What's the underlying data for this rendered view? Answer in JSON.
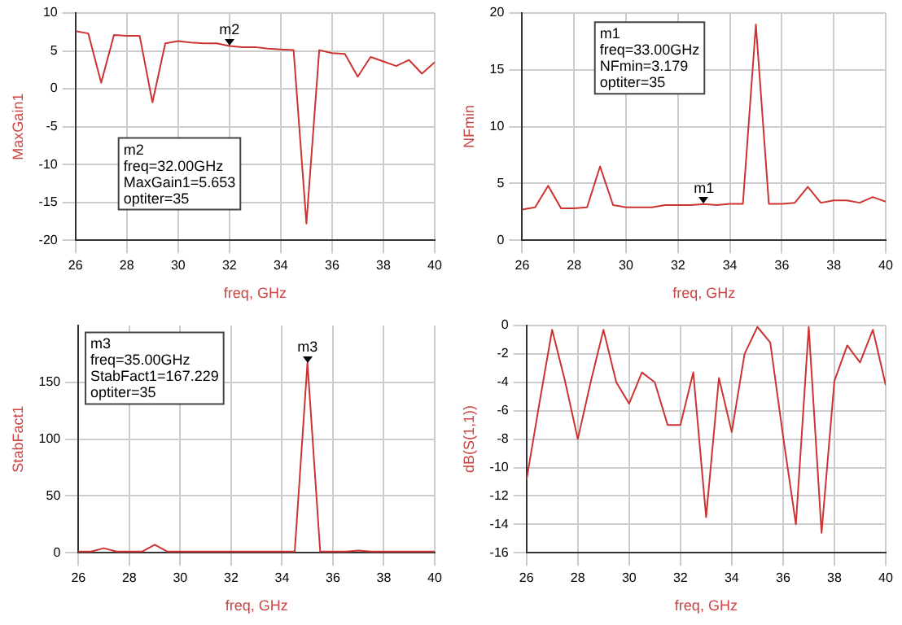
{
  "chart_data": [
    {
      "type": "line",
      "xlabel": "freq, GHz",
      "ylabel": "MaxGain1",
      "xlim": [
        26,
        40
      ],
      "xticks": [
        26,
        28,
        30,
        32,
        34,
        36,
        38,
        40
      ],
      "ylim": [
        -20,
        10
      ],
      "yticks": [
        -20,
        -15,
        -10,
        -5,
        0,
        5,
        10
      ],
      "grid": true,
      "legend": false,
      "series": [
        {
          "color": "#cc3333",
          "x": [
            26,
            26.5,
            27,
            27.5,
            28,
            28.5,
            29,
            29.5,
            30,
            30.5,
            31,
            31.5,
            32,
            32.5,
            33,
            33.5,
            34,
            34.5,
            35,
            35.5,
            36,
            36.5,
            37,
            37.5,
            38,
            38.5,
            39,
            39.5,
            40
          ],
          "values": [
            7.6,
            7.3,
            0.8,
            7.1,
            7,
            7,
            -1.8,
            6,
            6.3,
            6.1,
            6,
            6,
            5.653,
            5.5,
            5.5,
            5.3,
            5.2,
            5.1,
            -17.8,
            5.1,
            4.7,
            4.6,
            1.6,
            4.2,
            3.6,
            3,
            3.8,
            2,
            3.5
          ]
        }
      ],
      "annotations": [
        {
          "text": "m2",
          "x": 32,
          "y": 5.653
        },
        "m2\nfreq=32.00GHz\nMaxGain1=5.653\noptiter=35"
      ]
    },
    {
      "type": "line",
      "xlabel": "freq, GHz",
      "ylabel": "NFmin",
      "xlim": [
        26,
        40
      ],
      "xticks": [
        26,
        28,
        30,
        32,
        34,
        36,
        38,
        40
      ],
      "ylim": [
        0,
        20
      ],
      "yticks": [
        0,
        5,
        10,
        15,
        20
      ],
      "grid": true,
      "legend": false,
      "series": [
        {
          "color": "#cc3333",
          "x": [
            26,
            26.5,
            27,
            27.5,
            28,
            28.5,
            29,
            29.5,
            30,
            30.5,
            31,
            31.5,
            32,
            32.5,
            33,
            33.5,
            34,
            34.5,
            35,
            35.5,
            36,
            36.5,
            37,
            37.5,
            38,
            38.5,
            39,
            39.5,
            40
          ],
          "values": [
            2.7,
            2.9,
            4.8,
            2.8,
            2.8,
            2.9,
            6.5,
            3.1,
            2.9,
            2.9,
            2.9,
            3.1,
            3.1,
            3.1,
            3.179,
            3.1,
            3.2,
            3.2,
            19,
            3.2,
            3.2,
            3.3,
            4.7,
            3.3,
            3.5,
            3.5,
            3.3,
            3.8,
            3.4
          ]
        }
      ],
      "annotations": [
        {
          "text": "m1",
          "x": 33,
          "y": 3.179
        },
        "m1\nfreq=33.00GHz\nNFmin=3.179\noptiter=35"
      ]
    },
    {
      "type": "line",
      "xlabel": "freq, GHz",
      "ylabel": "StabFact1",
      "xlim": [
        26,
        40
      ],
      "xticks": [
        26,
        28,
        30,
        32,
        34,
        36,
        38,
        40
      ],
      "ylim": [
        0,
        200
      ],
      "yticks": [
        0,
        50,
        100,
        150
      ],
      "grid": true,
      "legend": false,
      "series": [
        {
          "color": "#cc3333",
          "x": [
            26,
            26.5,
            27,
            27.5,
            28,
            28.5,
            29,
            29.5,
            30,
            30.5,
            31,
            31.5,
            32,
            32.5,
            33,
            33.5,
            34,
            34.5,
            35,
            35.5,
            36,
            36.5,
            37,
            37.5,
            38,
            38.5,
            39,
            39.5,
            40
          ],
          "values": [
            1,
            1,
            4,
            1,
            1,
            1,
            7,
            1,
            1,
            1,
            1,
            1,
            1,
            1,
            1,
            1,
            1,
            1,
            167.229,
            1,
            1,
            1,
            2,
            1,
            1,
            1,
            1,
            1,
            1
          ]
        }
      ],
      "annotations": [
        {
          "text": "m3",
          "x": 35,
          "y": 167.229
        },
        "m3\nfreq=35.00GHz\nStabFact1=167.229\noptiter=35"
      ]
    },
    {
      "type": "line",
      "xlabel": "freq, GHz",
      "ylabel": "dB(S(1,1))",
      "xlim": [
        26,
        40
      ],
      "xticks": [
        26,
        28,
        30,
        32,
        34,
        36,
        38,
        40
      ],
      "ylim": [
        -16,
        0
      ],
      "yticks": [
        -16,
        -14,
        -12,
        -10,
        -8,
        -6,
        -4,
        -2,
        0
      ],
      "grid": true,
      "legend": false,
      "series": [
        {
          "color": "#cc3333",
          "x": [
            26,
            26.5,
            27,
            27.5,
            28,
            28.5,
            29,
            29.5,
            30,
            30.5,
            31,
            31.5,
            32,
            32.5,
            33,
            33.5,
            34,
            34.5,
            35,
            35.5,
            36,
            36.5,
            37,
            37.5,
            38,
            38.5,
            39,
            39.5,
            40
          ],
          "values": [
            -10.9,
            -5.5,
            -0.3,
            -3.9,
            -8,
            -4,
            -0.3,
            -4,
            -5.5,
            -3.3,
            -4,
            -7,
            -7,
            -3.3,
            -13.5,
            -3.7,
            -7.5,
            -2,
            -0.1,
            -1.2,
            -7.8,
            -14,
            -0.1,
            -14.6,
            -3.9,
            -1.4,
            -2.6,
            -0.3,
            -4.2
          ]
        }
      ]
    }
  ]
}
